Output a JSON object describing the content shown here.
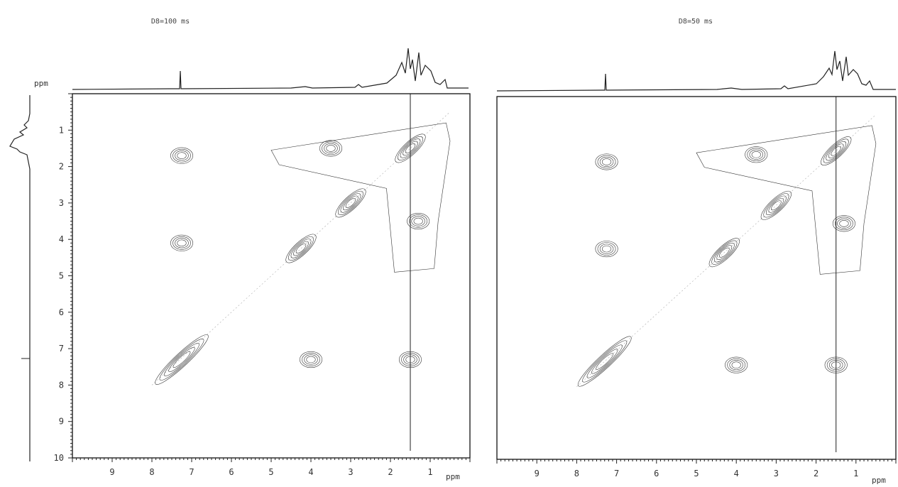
{
  "chart_data": [
    {
      "type": "heatmap",
      "title": "D8=100 ms",
      "xlabel": "ppm",
      "ylabel": "ppm",
      "xlim": [
        10,
        0
      ],
      "ylim": [
        0,
        10
      ],
      "x_ticks": [
        9,
        8,
        7,
        6,
        5,
        4,
        3,
        2,
        1
      ],
      "y_ticks": [
        1,
        2,
        3,
        4,
        5,
        6,
        7,
        8,
        9,
        10
      ],
      "has_top_projection": true,
      "has_left_projection": true,
      "diagonal_peaks": [
        {
          "f2": 7.25,
          "f1": 7.3
        },
        {
          "f2": 4.25,
          "f1": 4.25
        },
        {
          "f2": 3.0,
          "f1": 3.0
        },
        {
          "f2": 1.5,
          "f1": 1.5
        }
      ],
      "cross_peaks": [
        {
          "f2": 7.25,
          "f1": 1.7
        },
        {
          "f2": 7.25,
          "f1": 4.1
        },
        {
          "f2": 4.0,
          "f1": 7.3
        },
        {
          "f2": 1.5,
          "f1": 7.3
        },
        {
          "f2": 1.3,
          "f1": 3.5
        },
        {
          "f2": 3.5,
          "f1": 1.5
        }
      ]
    },
    {
      "type": "heatmap",
      "title": "D8=50 ms",
      "xlabel": "ppm",
      "xlim": [
        10,
        0
      ],
      "ylim": [
        0,
        10
      ],
      "x_ticks": [
        9,
        8,
        7,
        6,
        5,
        4,
        3,
        2,
        1
      ],
      "has_top_projection": true,
      "has_left_projection": false,
      "diagonal_peaks": [
        {
          "f2": 7.3,
          "f1": 7.3
        },
        {
          "f2": 4.3,
          "f1": 4.3
        },
        {
          "f2": 3.0,
          "f1": 3.0
        },
        {
          "f2": 1.5,
          "f1": 1.5
        }
      ],
      "cross_peaks": [
        {
          "f2": 7.25,
          "f1": 1.8
        },
        {
          "f2": 7.25,
          "f1": 4.2
        },
        {
          "f2": 4.0,
          "f1": 7.4
        },
        {
          "f2": 1.5,
          "f1": 7.4
        },
        {
          "f2": 1.3,
          "f1": 3.5
        },
        {
          "f2": 3.5,
          "f1": 1.6
        }
      ]
    }
  ]
}
